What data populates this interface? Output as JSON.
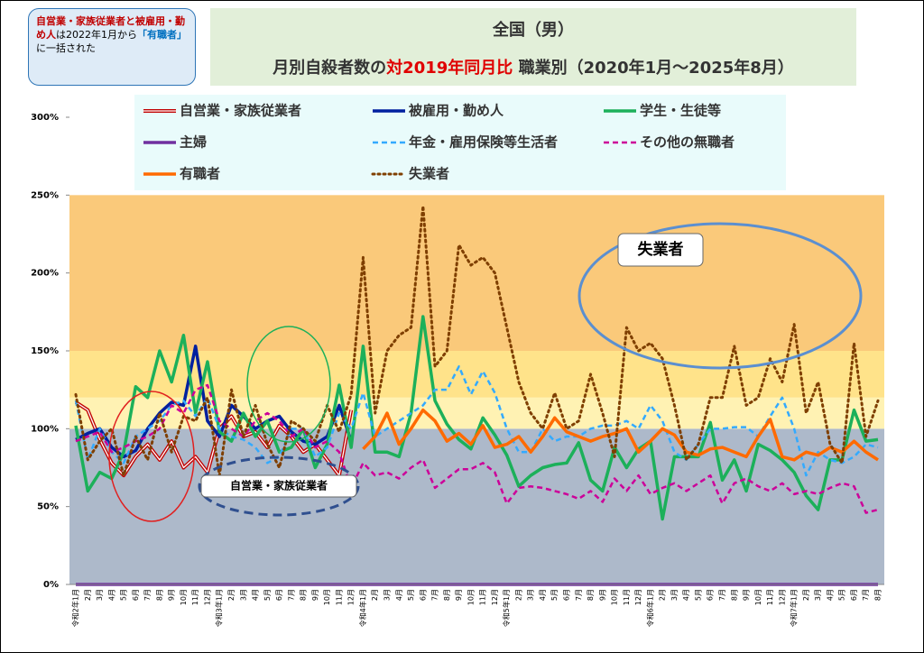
{
  "chart_data": {
    "type": "line",
    "title": "全国（男）",
    "subtitle": [
      "月別自殺者数の",
      "対2019年同月比",
      " 職業別（2020年1月～2025年8月）"
    ],
    "note": [
      "自営業・家族従業者と被雇用・勤め人",
      "は2022年1月から",
      "「有職者」",
      "に一括された"
    ],
    "annotations": [
      "失業者",
      "自営業・家族従業者"
    ],
    "categories": [
      "令和2年1月",
      "2月",
      "3月",
      "4月",
      "5月",
      "6月",
      "7月",
      "8月",
      "9月",
      "10月",
      "11月",
      "12月",
      "令和3年1月",
      "2月",
      "3月",
      "4月",
      "5月",
      "6月",
      "7月",
      "8月",
      "9月",
      "10月",
      "11月",
      "12月",
      "令和4年1月",
      "2月",
      "3月",
      "4月",
      "5月",
      "6月",
      "7月",
      "8月",
      "9月",
      "10月",
      "11月",
      "12月",
      "令和5年1月",
      "2月",
      "3月",
      "4月",
      "5月",
      "6月",
      "7月",
      "8月",
      "9月",
      "10月",
      "11月",
      "12月",
      "令和6年1月",
      "2月",
      "3月",
      "4月",
      "5月",
      "6月",
      "7月",
      "8月",
      "9月",
      "10月",
      "11月",
      "12月",
      "令和7年1月",
      "2月",
      "3月",
      "4月",
      "5月",
      "6月",
      "7月",
      "8月"
    ],
    "ylim": [
      0,
      300
    ],
    "yticks": [
      {
        "value": 0,
        "label": "0%"
      },
      {
        "value": 50,
        "label": "50%"
      },
      {
        "value": 100,
        "label": "100%"
      },
      {
        "value": 150,
        "label": "150%"
      },
      {
        "value": 200,
        "label": "200%"
      },
      {
        "value": 250,
        "label": "250%"
      },
      {
        "value": 300,
        "label": "300%"
      }
    ],
    "bands": [
      {
        "from": 0,
        "to": 100,
        "color": "#adb9ca"
      },
      {
        "from": 100,
        "to": 120,
        "color": "#fff2b3"
      },
      {
        "from": 120,
        "to": 150,
        "color": "#ffe38a"
      },
      {
        "from": 150,
        "to": 250,
        "color": "#fac97a"
      }
    ],
    "series": [
      {
        "name": "自営業・家族従業者",
        "color": "#c00000",
        "style": "double",
        "values": [
          117,
          112,
          93,
          78,
          70,
          82,
          90,
          80,
          92,
          75,
          82,
          72,
          100,
          108,
          95,
          98,
          88,
          102,
          95,
          85,
          90,
          80,
          70,
          112,
          null,
          null,
          null,
          null,
          null,
          null,
          null,
          null,
          null,
          null,
          null,
          null,
          null,
          null,
          null,
          null,
          null,
          null,
          null,
          null,
          null,
          null,
          null,
          null,
          null,
          null,
          null,
          null,
          null,
          null,
          null,
          null,
          null,
          null,
          null,
          null,
          null,
          null,
          null,
          null,
          null,
          null,
          null,
          null
        ]
      },
      {
        "name": "被雇用・勤め人",
        "color": "#00209f",
        "style": "solid",
        "values": [
          93,
          97,
          100,
          88,
          82,
          86,
          100,
          110,
          117,
          115,
          153,
          105,
          95,
          115,
          108,
          100,
          105,
          108,
          98,
          92,
          90,
          95,
          115,
          92,
          null,
          null,
          null,
          null,
          null,
          null,
          null,
          null,
          null,
          null,
          null,
          null,
          null,
          null,
          null,
          null,
          null,
          null,
          null,
          null,
          null,
          null,
          null,
          null,
          null,
          null,
          null,
          null,
          null,
          null,
          null,
          null,
          null,
          null,
          null,
          null,
          null,
          null,
          null,
          null,
          null,
          null,
          null,
          null
        ]
      },
      {
        "name": "学生・生徒等",
        "color": "#1cb05a",
        "style": "solid",
        "values": [
          102,
          60,
          72,
          68,
          85,
          127,
          120,
          150,
          130,
          160,
          110,
          143,
          98,
          92,
          110,
          95,
          105,
          85,
          88,
          100,
          75,
          90,
          128,
          88,
          153,
          85,
          85,
          82,
          110,
          172,
          118,
          103,
          93,
          87,
          107,
          96,
          83,
          63,
          70,
          75,
          77,
          78,
          91,
          67,
          60,
          88,
          75,
          87,
          92,
          42,
          82,
          82,
          82,
          104,
          67,
          80,
          60,
          90,
          86,
          80,
          72,
          57,
          48,
          80,
          80,
          112,
          92,
          93
        ]
      },
      {
        "name": "主婦",
        "color": "#7030a0",
        "style": "solid",
        "values": [
          0,
          0,
          0,
          0,
          0,
          0,
          0,
          0,
          0,
          0,
          0,
          0,
          0,
          0,
          0,
          0,
          0,
          0,
          0,
          0,
          0,
          0,
          0,
          0,
          0,
          0,
          0,
          0,
          0,
          0,
          0,
          0,
          0,
          0,
          0,
          0,
          0,
          0,
          0,
          0,
          0,
          0,
          0,
          0,
          0,
          0,
          0,
          0,
          0,
          0,
          0,
          0,
          0,
          0,
          0,
          0,
          0,
          0,
          0,
          0,
          0,
          0,
          0,
          0,
          0,
          0,
          0,
          0
        ]
      },
      {
        "name": "年金・雇用保険等生活者",
        "color": "#33aaff",
        "style": "dashed",
        "values": [
          118,
          80,
          100,
          85,
          78,
          95,
          100,
          105,
          115,
          118,
          108,
          120,
          100,
          95,
          93,
          88,
          78,
          82,
          100,
          100,
          82,
          88,
          110,
          100,
          123,
          95,
          100,
          105,
          110,
          115,
          125,
          125,
          140,
          122,
          137,
          123,
          100,
          85,
          85,
          100,
          92,
          95,
          95,
          100,
          102,
          102,
          105,
          100,
          115,
          105,
          85,
          80,
          90,
          100,
          100,
          101,
          101,
          95,
          108,
          120,
          100,
          70,
          85,
          80,
          78,
          82,
          90,
          88
        ]
      },
      {
        "name": "その他の無職者",
        "color": "#cc0099",
        "style": "dashed",
        "values": [
          92,
          95,
          98,
          85,
          88,
          92,
          95,
          100,
          115,
          110,
          125,
          128,
          105,
          100,
          95,
          105,
          110,
          105,
          95,
          100,
          88,
          92,
          85,
          62,
          78,
          70,
          72,
          68,
          75,
          80,
          62,
          68,
          74,
          74,
          78,
          72,
          52,
          62,
          63,
          62,
          60,
          58,
          55,
          60,
          53,
          68,
          60,
          70,
          58,
          62,
          65,
          60,
          65,
          70,
          52,
          65,
          68,
          63,
          60,
          65,
          58,
          60,
          58,
          62,
          65,
          63,
          46,
          48
        ]
      },
      {
        "name": "有職者",
        "color": "#ff6a00",
        "style": "solid",
        "values": [
          null,
          null,
          null,
          null,
          null,
          null,
          null,
          null,
          null,
          null,
          null,
          null,
          null,
          null,
          null,
          null,
          null,
          null,
          null,
          null,
          null,
          null,
          null,
          null,
          87,
          95,
          110,
          90,
          100,
          112,
          105,
          92,
          97,
          90,
          102,
          88,
          90,
          95,
          85,
          95,
          107,
          98,
          95,
          92,
          95,
          97,
          100,
          85,
          92,
          100,
          96,
          85,
          83,
          87,
          88,
          85,
          82,
          95,
          106,
          82,
          80,
          85,
          83,
          88,
          85,
          92,
          85,
          80
        ]
      },
      {
        "name": "失業者",
        "color": "#7f3f00",
        "style": "dotted",
        "values": [
          122,
          80,
          92,
          100,
          70,
          95,
          80,
          110,
          85,
          108,
          105,
          120,
          70,
          125,
          95,
          115,
          90,
          75,
          105,
          100,
          92,
          115,
          98,
          122,
          210,
          110,
          150,
          160,
          165,
          243,
          140,
          150,
          218,
          205,
          210,
          200,
          165,
          130,
          110,
          100,
          123,
          100,
          105,
          135,
          110,
          82,
          165,
          150,
          155,
          145,
          115,
          80,
          90,
          120,
          120,
          153,
          115,
          120,
          145,
          130,
          167,
          110,
          130,
          90,
          78,
          155,
          95,
          118
        ]
      }
    ]
  }
}
